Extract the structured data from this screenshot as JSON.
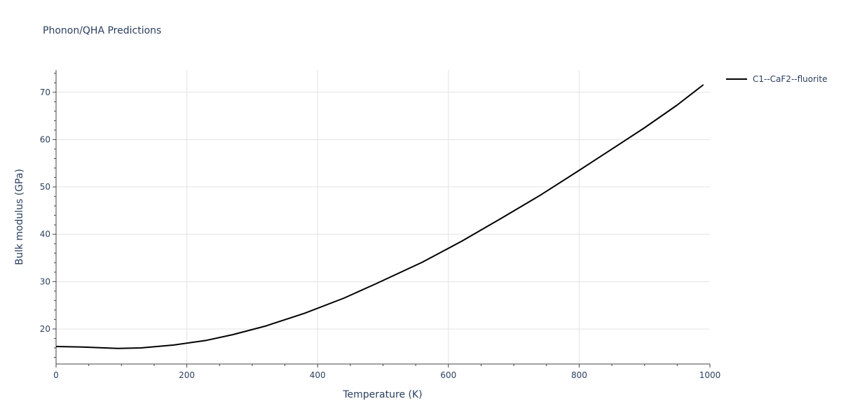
{
  "chart_data": {
    "type": "line",
    "title": "Phonon/QHA Predictions",
    "xlabel": "Temperature (K)",
    "ylabel": "Bulk modulus (GPa)",
    "xlim": [
      0,
      1000
    ],
    "ylim": [
      12.6,
      74.7
    ],
    "x_ticks": [
      0,
      200,
      400,
      600,
      800,
      1000
    ],
    "y_ticks": [
      20,
      30,
      40,
      50,
      60,
      70
    ],
    "grid": true,
    "legend_position": "top-right",
    "series": [
      {
        "name": "C1--CaF2--fluorite",
        "color": "#000000",
        "x": [
          0,
          40,
          95,
          130,
          180,
          230,
          270,
          320,
          380,
          440,
          490,
          560,
          620,
          680,
          740,
          800,
          820,
          900,
          950,
          990
        ],
        "y": [
          16.3,
          16.2,
          15.9,
          16.0,
          16.6,
          17.6,
          18.8,
          20.6,
          23.3,
          26.5,
          29.6,
          34.1,
          38.5,
          43.3,
          48.2,
          53.5,
          55.3,
          62.5,
          67.3,
          71.6
        ]
      }
    ]
  },
  "colors": {
    "grid": "#e3e3e3",
    "axis": "#444444",
    "text": "#2a3f5f",
    "background": "#ffffff"
  }
}
